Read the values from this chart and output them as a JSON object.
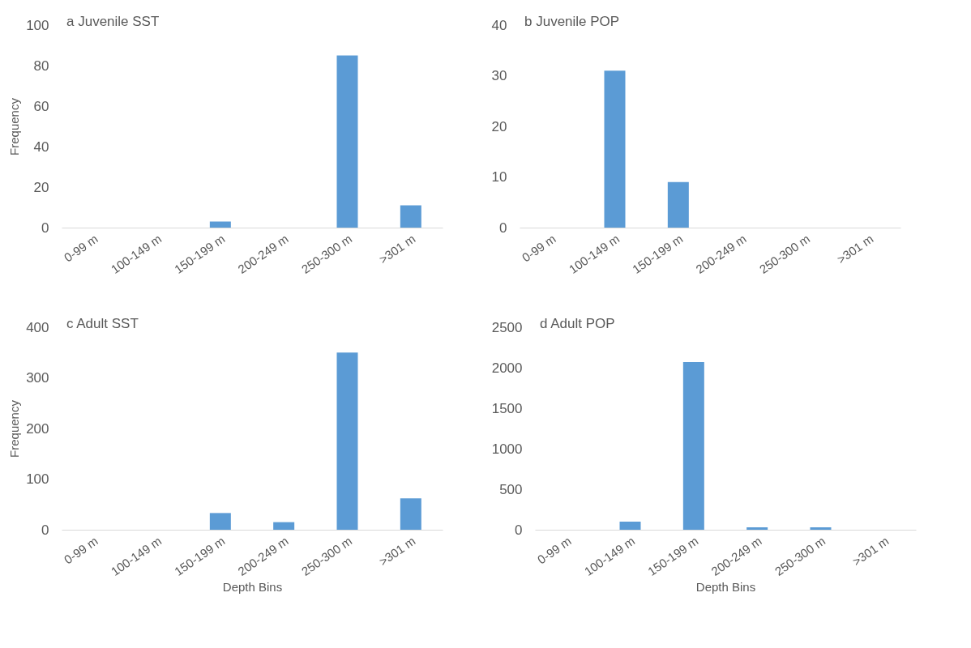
{
  "chart_data": [
    {
      "type": "bar",
      "title": "a Juvenile SST",
      "ylabel": "Frequency",
      "categories": [
        "0-99 m",
        "100-149 m",
        "150-199 m",
        "200-249 m",
        "250-300 m",
        ">301 m"
      ],
      "values": [
        0,
        0,
        3,
        0,
        85,
        11
      ],
      "color": "#5b9bd5",
      "ylim": [
        0,
        100
      ],
      "yticks": [
        0,
        20,
        40,
        60,
        80,
        100
      ],
      "grid": false
    },
    {
      "type": "bar",
      "title": "b Juvenile POP",
      "categories": [
        "0-99 m",
        "100-149 m",
        "150-199 m",
        "200-249 m",
        "250-300 m",
        ">301 m"
      ],
      "values": [
        0,
        31,
        9,
        0,
        0,
        0
      ],
      "color": "#5b9bd5",
      "ylim": [
        0,
        40
      ],
      "yticks": [
        0,
        10,
        20,
        30,
        40
      ],
      "grid": false
    },
    {
      "type": "bar",
      "title": "c Adult SST",
      "ylabel": "Frequency",
      "xlabel": "Depth Bins",
      "categories": [
        "0-99 m",
        "100-149 m",
        "150-199 m",
        "200-249 m",
        "250-300 m",
        ">301 m"
      ],
      "values": [
        0,
        0,
        33,
        15,
        350,
        62
      ],
      "color": "#5b9bd5",
      "ylim": [
        0,
        400
      ],
      "yticks": [
        0,
        100,
        200,
        300,
        400
      ],
      "grid": false
    },
    {
      "type": "bar",
      "title": "d Adult POP",
      "xlabel": "Depth Bins",
      "categories": [
        "0-99 m",
        "100-149 m",
        "150-199 m",
        "200-249 m",
        "250-300 m",
        ">301 m"
      ],
      "values": [
        0,
        100,
        2070,
        30,
        30,
        0
      ],
      "color": "#5b9bd5",
      "ylim": [
        0,
        2500
      ],
      "yticks": [
        0,
        500,
        1000,
        1500,
        2000,
        2500
      ],
      "grid": false
    }
  ]
}
